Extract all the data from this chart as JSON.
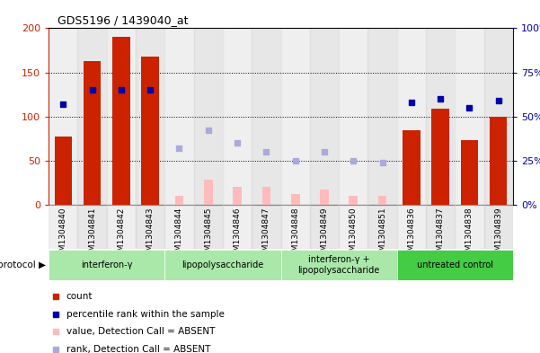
{
  "title": "GDS5196 / 1439040_at",
  "samples": [
    "GSM1304840",
    "GSM1304841",
    "GSM1304842",
    "GSM1304843",
    "GSM1304844",
    "GSM1304845",
    "GSM1304846",
    "GSM1304847",
    "GSM1304848",
    "GSM1304849",
    "GSM1304850",
    "GSM1304851",
    "GSM1304836",
    "GSM1304837",
    "GSM1304838",
    "GSM1304839"
  ],
  "count_values": [
    77,
    163,
    190,
    168,
    null,
    null,
    null,
    null,
    null,
    null,
    null,
    null,
    84,
    109,
    73,
    100
  ],
  "absent_values": [
    null,
    null,
    null,
    null,
    10,
    28,
    20,
    20,
    12,
    17,
    10,
    10,
    null,
    null,
    null,
    null
  ],
  "percentile_rank_present": [
    57,
    65,
    65,
    65,
    null,
    null,
    null,
    null,
    null,
    null,
    null,
    null,
    58,
    60,
    55,
    59
  ],
  "percentile_rank_absent": [
    null,
    null,
    null,
    null,
    32,
    42,
    35,
    30,
    25,
    30,
    25,
    24,
    null,
    null,
    null,
    null
  ],
  "protocols": [
    {
      "label": "interferon-γ",
      "start": 0,
      "end": 4,
      "color": "#aae8aa"
    },
    {
      "label": "lipopolysaccharide",
      "start": 4,
      "end": 8,
      "color": "#aae8aa"
    },
    {
      "label": "interferon-γ +\nlipopolysaccharide",
      "start": 8,
      "end": 12,
      "color": "#aae8aa"
    },
    {
      "label": "untreated control",
      "start": 12,
      "end": 16,
      "color": "#44cc44"
    }
  ],
  "ylim_left": [
    0,
    200
  ],
  "yticks_left": [
    0,
    50,
    100,
    150,
    200
  ],
  "ytick_labels_left": [
    "0",
    "50",
    "100",
    "150",
    "200"
  ],
  "yticks_right_pos": [
    0,
    50,
    100,
    150,
    200
  ],
  "ytick_labels_right": [
    "0%",
    "25%",
    "50%",
    "75%",
    "100%"
  ],
  "bar_color_present": "#cc2200",
  "bar_color_absent": "#ffbbbb",
  "dot_color_present": "#0000aa",
  "dot_color_absent": "#aaaadd",
  "bg_color_fig": "#ffffff",
  "legend_items": [
    {
      "color": "#cc2200",
      "marker": "s",
      "label": "count"
    },
    {
      "color": "#0000aa",
      "marker": "s",
      "label": "percentile rank within the sample"
    },
    {
      "color": "#ffbbbb",
      "marker": "s",
      "label": "value, Detection Call = ABSENT"
    },
    {
      "color": "#aaaadd",
      "marker": "s",
      "label": "rank, Detection Call = ABSENT"
    }
  ]
}
